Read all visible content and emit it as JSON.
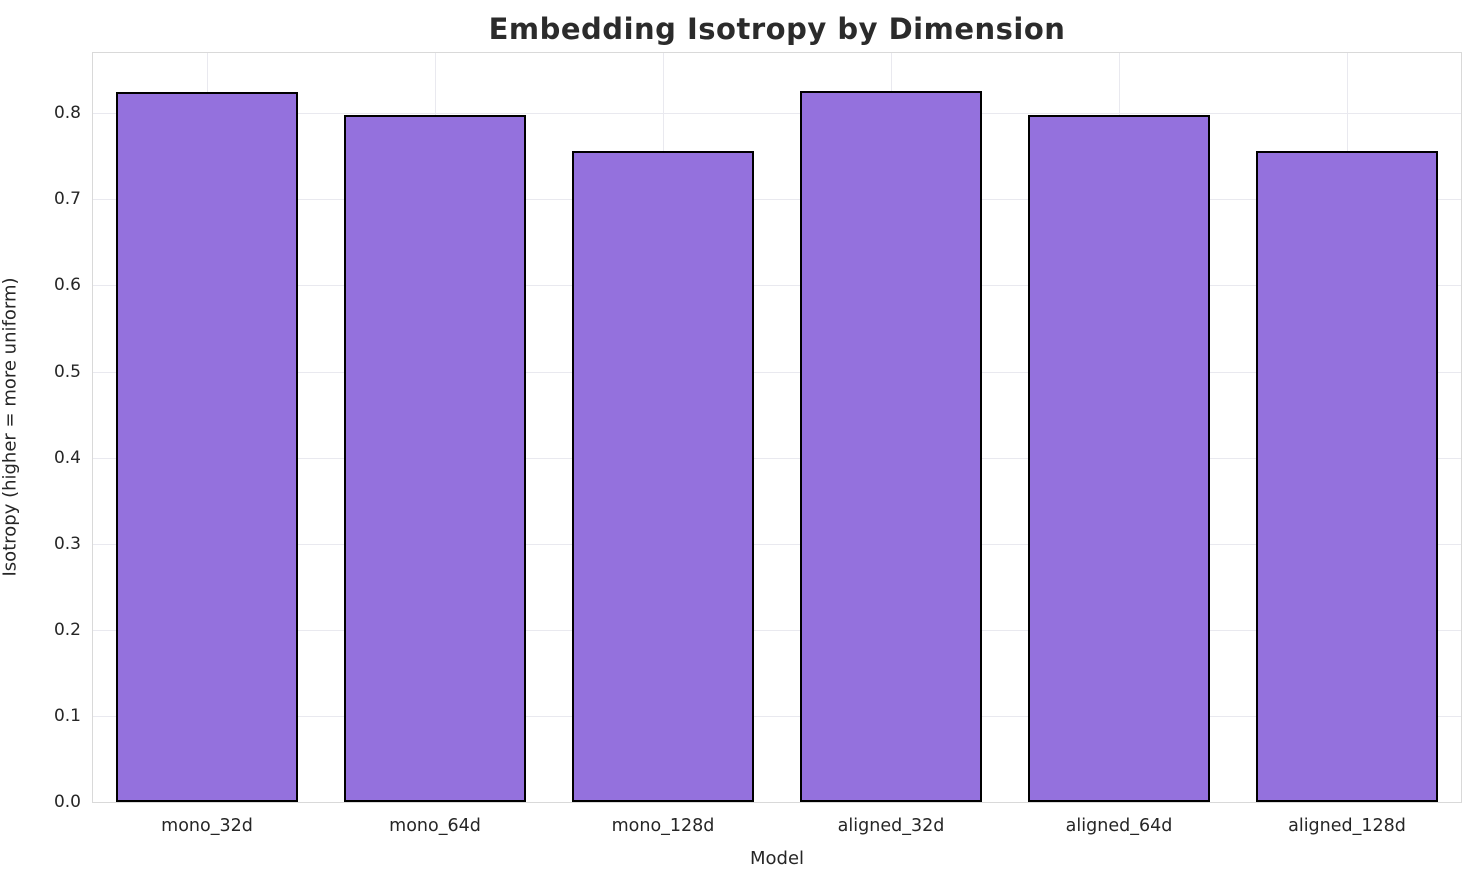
{
  "chart_data": {
    "type": "bar",
    "title": "Embedding Isotropy by Dimension",
    "xlabel": "Model",
    "ylabel": "Isotropy (higher = more uniform)",
    "categories": [
      "mono_32d",
      "mono_64d",
      "mono_128d",
      "aligned_32d",
      "aligned_64d",
      "aligned_128d"
    ],
    "values": [
      0.825,
      0.798,
      0.756,
      0.826,
      0.798,
      0.756
    ],
    "yticks": [
      0.0,
      0.1,
      0.2,
      0.3,
      0.4,
      0.5,
      0.6,
      0.7,
      0.8
    ],
    "ylim": [
      0,
      0.87
    ],
    "bar_width_fraction": 0.8,
    "grid": true,
    "legend_position": "none",
    "bar_color": "#9471dd",
    "bar_edge_color": "#000000",
    "grid_color": "#e9e9ef"
  }
}
